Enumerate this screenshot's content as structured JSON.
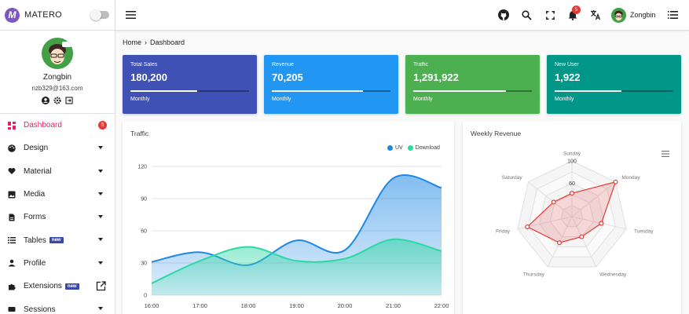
{
  "app": {
    "name": "MATERO"
  },
  "user": {
    "name": "Zongbin",
    "email": "nzb329@163.com"
  },
  "sidebar": {
    "items": [
      {
        "label": "Dashboard",
        "icon": "dashboard-icon",
        "badge": "5"
      },
      {
        "label": "Design",
        "icon": "palette-icon"
      },
      {
        "label": "Material",
        "icon": "heart-icon"
      },
      {
        "label": "Media",
        "icon": "image-icon"
      },
      {
        "label": "Forms",
        "icon": "form-icon"
      },
      {
        "label": "Tables",
        "icon": "list-icon",
        "tag": "new"
      },
      {
        "label": "Profile",
        "icon": "person-icon"
      },
      {
        "label": "Extensions",
        "icon": "puzzle-icon",
        "tag": "new"
      },
      {
        "label": "Sessions",
        "icon": "session-icon"
      }
    ]
  },
  "topbar": {
    "notifications": "5",
    "username": "Zongbin"
  },
  "breadcrumb": {
    "home": "Home",
    "current": "Dashboard"
  },
  "stats": [
    {
      "title": "Total Sales",
      "value": "180,200",
      "footer": "Monthly",
      "color": "#3f51b5",
      "progress": 0.56
    },
    {
      "title": "Revenue",
      "value": "70,205",
      "footer": "Monthly",
      "color": "#2196f3",
      "progress": 0.77
    },
    {
      "title": "Traffic",
      "value": "1,291,922",
      "footer": "Monthly",
      "color": "#4caf50",
      "progress": 0.78
    },
    {
      "title": "New User",
      "value": "1,922",
      "footer": "Monthly",
      "color": "#009688",
      "progress": 0.56
    }
  ],
  "colors": {
    "accent": "#e91e63",
    "uv": "#1e88e5",
    "download": "#2ed8a3",
    "radar": "#e53935"
  },
  "chart_data": [
    {
      "type": "area",
      "title": "Traffic",
      "categories": [
        "16:00",
        "17:00",
        "18:00",
        "19:00",
        "20:00",
        "21:00",
        "22:00"
      ],
      "ylim": [
        0,
        120
      ],
      "yticks": [
        0,
        30,
        60,
        90,
        120
      ],
      "legend": "top-right",
      "grid": true,
      "series": [
        {
          "name": "UV",
          "values": [
            31,
            40,
            28,
            51,
            42,
            109,
            100
          ]
        },
        {
          "name": "Download",
          "values": [
            11,
            32,
            45,
            32,
            34,
            52,
            41
          ]
        }
      ]
    },
    {
      "type": "radar",
      "title": "Weekly Revenue",
      "axes": [
        "Sunday",
        "Monday",
        "Tuesday",
        "Wednesday",
        "Thursday",
        "Friday",
        "Saturday"
      ],
      "rticks": [
        60,
        100
      ],
      "values": [
        42,
        100,
        54,
        40,
        52,
        82,
        42
      ]
    }
  ]
}
